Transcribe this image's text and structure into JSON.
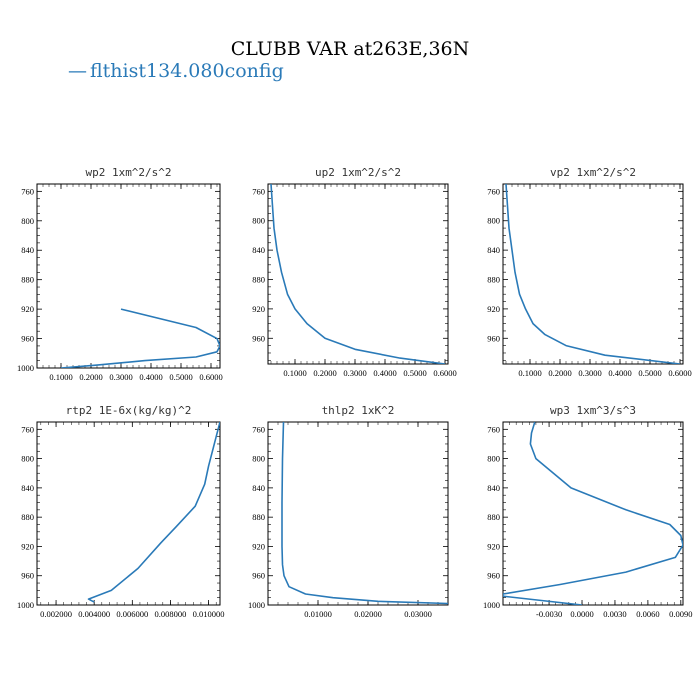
{
  "figure": {
    "title": "CLUBB VAR at263E,36N",
    "legend": {
      "label": "flthist134.080config",
      "marker": "—",
      "color": "#2a7ab8"
    }
  },
  "chart_data": [
    {
      "type": "line",
      "title": "wp2  1xm^2/s^2",
      "xlabel": "",
      "ylabel": "",
      "xlim": [
        0.02,
        0.63
      ],
      "ylim": [
        1000,
        750
      ],
      "xticks": [
        "0.1000",
        "0.2000",
        "0.3000",
        "0.4000",
        "0.5000",
        "0.6000"
      ],
      "xtick_values": [
        0.1,
        0.2,
        0.3,
        0.4,
        0.5,
        0.6
      ],
      "yticks": [
        760,
        800,
        840,
        880,
        920,
        960,
        1000
      ],
      "series": [
        {
          "color": "#2a7ab8",
          "x": [
            0.1,
            0.22,
            0.38,
            0.55,
            0.62,
            0.63,
            0.62,
            0.55,
            0.3
          ],
          "y": [
            1000,
            996,
            990,
            985,
            978,
            970,
            960,
            945,
            920
          ]
        }
      ]
    },
    {
      "type": "line",
      "title": "up2  1xm^2/s^2",
      "xlabel": "",
      "ylabel": "",
      "xlim": [
        0.01,
        0.61
      ],
      "ylim": [
        995,
        750
      ],
      "xticks": [
        "0.1000",
        "0.2000",
        "0.3000",
        "0.4000",
        "0.5000",
        "0.6000"
      ],
      "xtick_values": [
        0.1,
        0.2,
        0.3,
        0.4,
        0.5,
        0.6
      ],
      "yticks": [
        760,
        800,
        840,
        880,
        920,
        960,
        1000
      ],
      "series": [
        {
          "color": "#2a7ab8",
          "x": [
            0.02,
            0.025,
            0.03,
            0.04,
            0.055,
            0.075,
            0.1,
            0.14,
            0.2,
            0.3,
            0.45,
            0.6
          ],
          "y": [
            750,
            780,
            810,
            840,
            870,
            900,
            920,
            940,
            960,
            975,
            987,
            995
          ]
        }
      ]
    },
    {
      "type": "line",
      "title": "vp2  1xm^2/s^2",
      "xlabel": "",
      "ylabel": "",
      "xlim": [
        0.01,
        0.61
      ],
      "ylim": [
        995,
        750
      ],
      "xticks": [
        "0.1000",
        "0.2000",
        "0.3000",
        "0.4000",
        "0.5000",
        "0.6000"
      ],
      "xtick_values": [
        0.1,
        0.2,
        0.3,
        0.4,
        0.5,
        0.6
      ],
      "yticks": [
        760,
        800,
        840,
        880,
        920,
        960,
        1000
      ],
      "series": [
        {
          "color": "#2a7ab8",
          "x": [
            0.02,
            0.025,
            0.03,
            0.04,
            0.05,
            0.065,
            0.085,
            0.11,
            0.15,
            0.22,
            0.35,
            0.6
          ],
          "y": [
            750,
            780,
            810,
            840,
            870,
            900,
            920,
            940,
            955,
            970,
            983,
            995
          ]
        }
      ]
    },
    {
      "type": "line",
      "title": "rtp2  1E-6x(kg/kg)^2",
      "xlabel": "",
      "ylabel": "",
      "xlim": [
        0.001,
        0.0106
      ],
      "ylim": [
        1000,
        750
      ],
      "xticks": [
        "0.002000",
        "0.004000",
        "0.006000",
        "0.008000",
        "0.010000"
      ],
      "xtick_values": [
        0.002,
        0.004,
        0.006,
        0.008,
        0.01
      ],
      "yticks": [
        760,
        800,
        840,
        880,
        920,
        960,
        1000
      ],
      "series": [
        {
          "color": "#2a7ab8",
          "x": [
            0.0106,
            0.0104,
            0.0102,
            0.01,
            0.0098,
            0.0093,
            0.0083,
            0.0075,
            0.0063,
            0.0049,
            0.0037,
            0.004
          ],
          "y": [
            750,
            770,
            790,
            810,
            835,
            865,
            893,
            915,
            950,
            980,
            992,
            996
          ]
        }
      ]
    },
    {
      "type": "line",
      "title": "thlp2  1xK^2",
      "xlabel": "",
      "ylabel": "",
      "xlim": [
        0.0,
        0.036
      ],
      "ylim": [
        1000,
        750
      ],
      "xticks": [
        "0.01000",
        "0.02000",
        "0.03000"
      ],
      "xtick_values": [
        0.01,
        0.02,
        0.03
      ],
      "yticks": [
        760,
        800,
        840,
        880,
        920,
        960,
        1000
      ],
      "series": [
        {
          "color": "#2a7ab8",
          "x": [
            0.0031,
            0.0029,
            0.0028,
            0.0028,
            0.0029,
            0.0032,
            0.0042,
            0.0075,
            0.013,
            0.022,
            0.036
          ],
          "y": [
            750,
            800,
            860,
            920,
            945,
            960,
            975,
            985,
            990,
            995,
            998
          ]
        }
      ]
    },
    {
      "type": "line",
      "title": "wp3  1xm^3/s^3",
      "xlabel": "",
      "ylabel": "",
      "xlim": [
        -0.0072,
        0.0092
      ],
      "ylim": [
        1000,
        750
      ],
      "xticks": [
        "-0.0030",
        "0.0000",
        "0.0030",
        "0.0060",
        "0.0090"
      ],
      "xtick_values": [
        -0.003,
        0.0,
        0.003,
        0.006,
        0.009
      ],
      "yticks": [
        760,
        800,
        840,
        880,
        920,
        960,
        1000
      ],
      "series": [
        {
          "color": "#2a7ab8",
          "x": [
            -0.0043,
            -0.0046,
            -0.0047,
            -0.0042,
            -0.001,
            0.004,
            0.008,
            0.009,
            0.0092,
            0.0085,
            0.004,
            -0.002,
            -0.0072,
            -0.0072,
            0.0
          ],
          "y": [
            750,
            765,
            780,
            800,
            840,
            870,
            890,
            905,
            918,
            935,
            955,
            972,
            985,
            988,
            1000
          ]
        }
      ]
    }
  ]
}
